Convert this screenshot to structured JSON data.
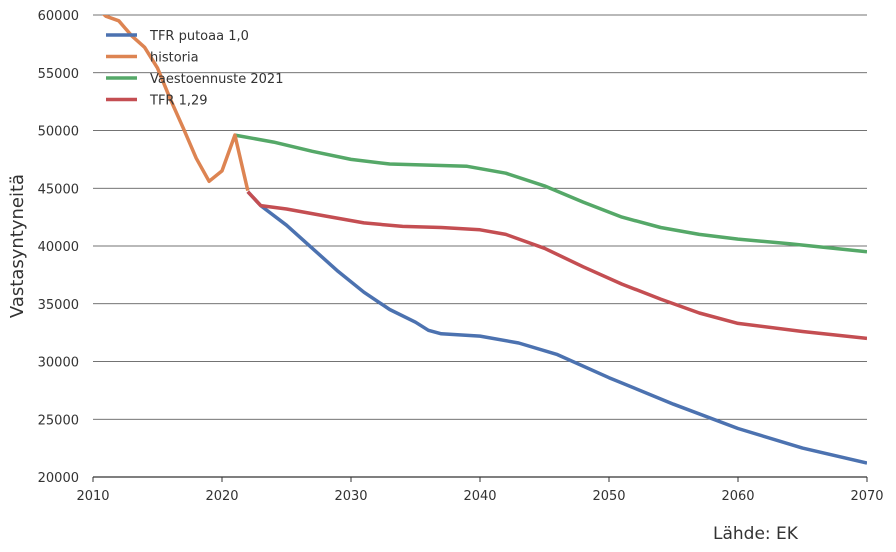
{
  "chart_data": {
    "type": "line",
    "ylabel": "Vastasyntyneitä",
    "xlabel": "",
    "source_label": "Lähde: EK",
    "xlim": [
      2010,
      2070
    ],
    "ylim": [
      20000,
      60000
    ],
    "x_ticks": [
      "2010",
      "2020",
      "2030",
      "2040",
      "2050",
      "2060",
      "2070"
    ],
    "y_ticks": [
      "20000",
      "25000",
      "30000",
      "35000",
      "40000",
      "45000",
      "50000",
      "55000",
      "60000"
    ],
    "grid": "horizontal",
    "legend_position": "top-left",
    "series": [
      {
        "name": "TFR putoaa 1,0",
        "color": "#4c72b0",
        "x": [
          2022,
          2023,
          2025,
          2027,
          2029,
          2031,
          2033,
          2035,
          2036,
          2037,
          2040,
          2043,
          2046,
          2050,
          2055,
          2060,
          2065,
          2070
        ],
        "y": [
          44700,
          43500,
          41800,
          39800,
          37800,
          36000,
          34500,
          33400,
          32700,
          32400,
          32200,
          31600,
          30600,
          28600,
          26300,
          24200,
          22500,
          21200
        ]
      },
      {
        "name": "historia",
        "color": "#dd8452",
        "x": [
          2010,
          2011,
          2012,
          2013,
          2014,
          2015,
          2016,
          2017,
          2018,
          2019,
          2020,
          2021,
          2022
        ],
        "y": [
          60900,
          59900,
          59500,
          58200,
          57200,
          55400,
          52700,
          50200,
          47600,
          45600,
          46500,
          49600,
          44800
        ]
      },
      {
        "name": "Vaestoennuste 2021",
        "color": "#55a868",
        "x": [
          2021,
          2024,
          2027,
          2030,
          2033,
          2036,
          2039,
          2042,
          2045,
          2048,
          2051,
          2054,
          2057,
          2060,
          2064,
          2070
        ],
        "y": [
          49600,
          49000,
          48200,
          47500,
          47100,
          47000,
          46900,
          46300,
          45200,
          43800,
          42500,
          41600,
          41000,
          40600,
          40200,
          39500
        ]
      },
      {
        "name": "TFR 1,29",
        "color": "#c44e52",
        "x": [
          2022,
          2023,
          2025,
          2028,
          2031,
          2034,
          2037,
          2040,
          2042,
          2045,
          2048,
          2051,
          2054,
          2057,
          2060,
          2065,
          2070
        ],
        "y": [
          44700,
          43500,
          43200,
          42600,
          42000,
          41700,
          41600,
          41400,
          41000,
          39800,
          38200,
          36700,
          35400,
          34200,
          33300,
          32600,
          32000
        ]
      }
    ]
  }
}
